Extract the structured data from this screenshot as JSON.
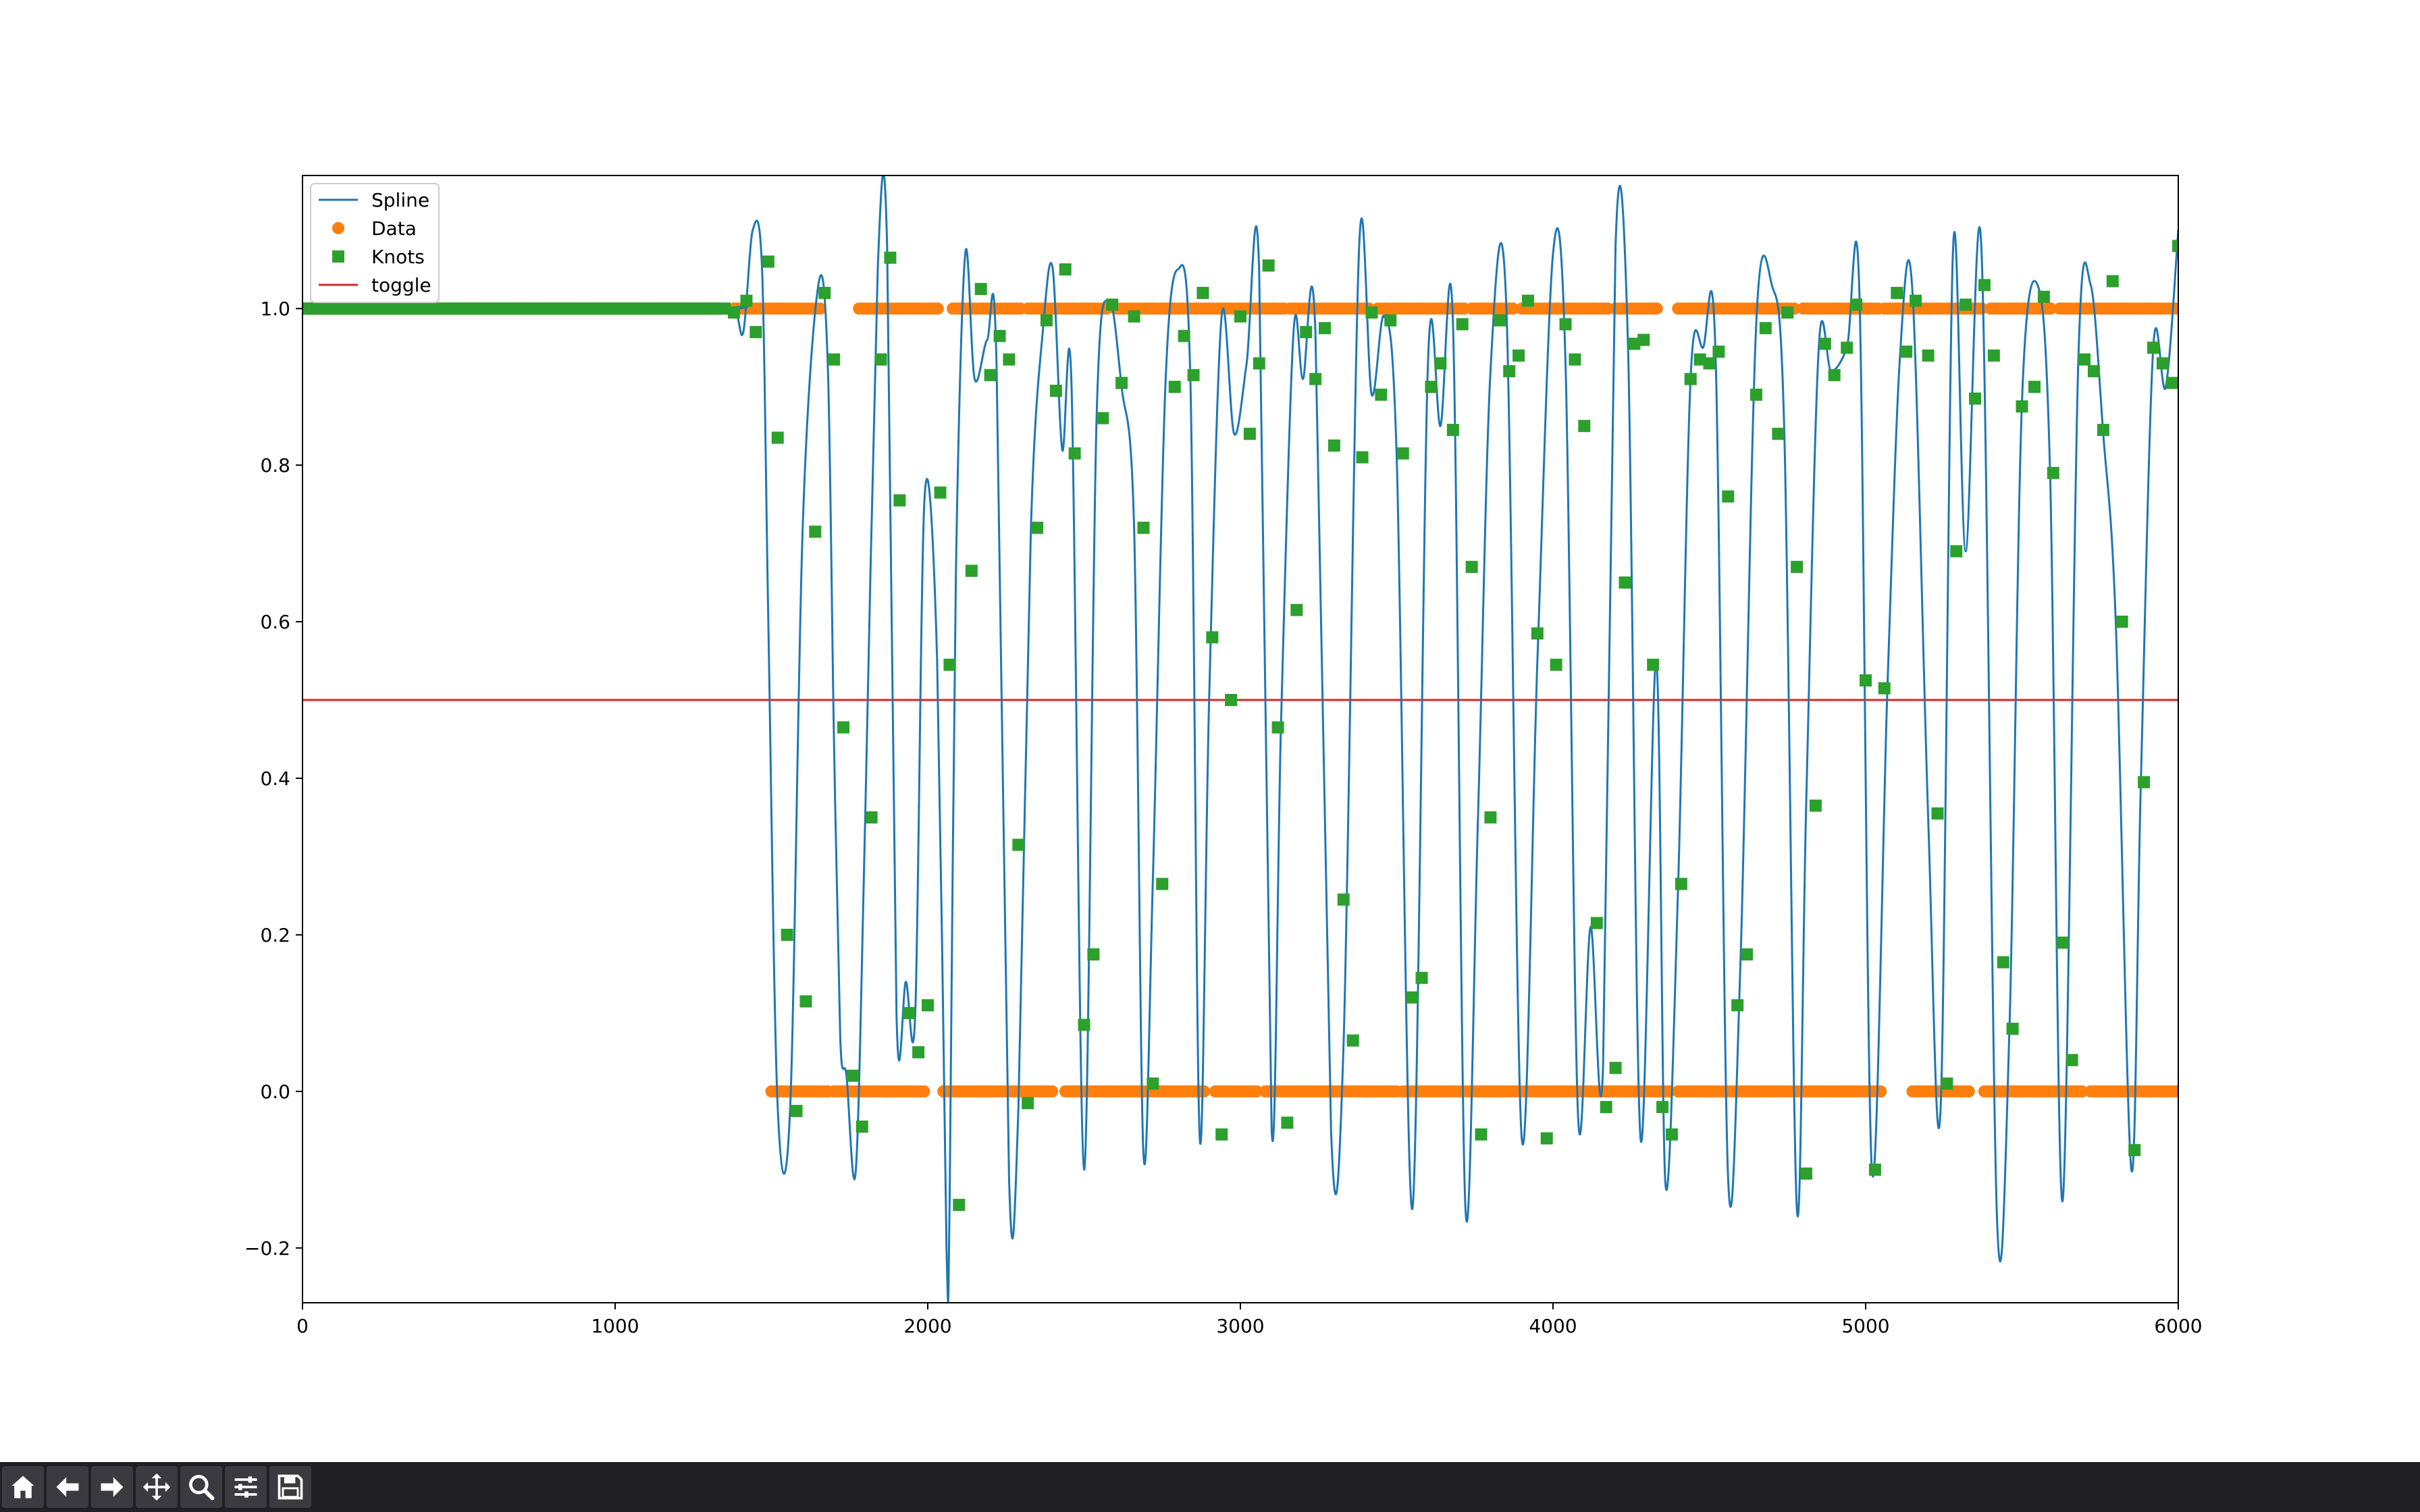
{
  "chart_data": {
    "type": "line",
    "title": "",
    "xlabel": "",
    "ylabel": "",
    "xlim": [
      0,
      6000
    ],
    "ylim": [
      -0.27,
      1.17
    ],
    "xticks": [
      0,
      1000,
      2000,
      3000,
      4000,
      5000,
      6000
    ],
    "xtick_labels": [
      "0",
      "1000",
      "2000",
      "3000",
      "4000",
      "5000",
      "6000"
    ],
    "yticks": [
      -0.2,
      0.0,
      0.2,
      0.4,
      0.6,
      0.8,
      1.0
    ],
    "ytick_labels": [
      "−0.2",
      "0.0",
      "0.2",
      "0.4",
      "0.6",
      "0.8",
      "1.0"
    ],
    "grid": false,
    "legend_position": "top-left",
    "colors": {
      "spline": "#1f77b4",
      "data": "#ff7f0e",
      "knots": "#2ca02c",
      "toggle": "#d62728"
    },
    "series": [
      {
        "name": "Spline",
        "style": "line",
        "x": [
          0,
          1300,
          1380,
          1410,
          1440,
          1470,
          1490,
          1520,
          1560,
          1600,
          1650,
          1680,
          1700,
          1720,
          1740,
          1770,
          1800,
          1840,
          1870,
          1900,
          1930,
          1960,
          1990,
          2030,
          2060,
          2070,
          2090,
          2120,
          2150,
          2190,
          2220,
          2260,
          2290,
          2330,
          2370,
          2400,
          2430,
          2460,
          2500,
          2540,
          2580,
          2620,
          2660,
          2690,
          2720,
          2760,
          2800,
          2840,
          2870,
          2900,
          2940,
          2980,
          3020,
          3060,
          3100,
          3130,
          3170,
          3200,
          3240,
          3290,
          3330,
          3380,
          3420,
          3460,
          3500,
          3550,
          3600,
          3640,
          3680,
          3720,
          3760,
          3800,
          3850,
          3900,
          3950,
          4000,
          4040,
          4080,
          4120,
          4160,
          4200,
          4240,
          4280,
          4330,
          4360,
          4400,
          4440,
          4480,
          4520,
          4560,
          4600,
          4650,
          4700,
          4740,
          4780,
          4810,
          4850,
          4890,
          4940,
          4980,
          5020,
          5070,
          5110,
          5150,
          5200,
          5240,
          5280,
          5320,
          5370,
          5420,
          5460,
          5500,
          5550,
          5590,
          5630,
          5680,
          5720,
          5760,
          5800,
          5850,
          5880,
          5920,
          5960,
          6000
        ],
        "y": [
          1.0,
          1.0,
          1.0,
          0.97,
          1.1,
          1.05,
          0.6,
          -0.02,
          -0.02,
          0.72,
          1.03,
          0.93,
          0.45,
          0.07,
          0.02,
          -0.1,
          0.35,
          1.05,
          1.08,
          0.1,
          0.14,
          0.1,
          0.76,
          0.55,
          -0.2,
          -0.14,
          0.66,
          1.07,
          0.91,
          0.96,
          0.93,
          -0.11,
          -0.02,
          0.72,
          0.98,
          1.05,
          0.82,
          0.9,
          -0.1,
          0.86,
          1.01,
          0.9,
          0.72,
          -0.08,
          0.27,
          0.9,
          1.05,
          0.91,
          -0.06,
          0.5,
          0.99,
          0.84,
          0.93,
          1.05,
          -0.05,
          0.47,
          0.97,
          0.91,
          0.97,
          -0.05,
          0.06,
          1.08,
          0.89,
          0.99,
          0.81,
          -0.15,
          0.93,
          0.85,
          0.98,
          -0.15,
          0.35,
          0.92,
          1.01,
          -0.06,
          0.55,
          1.07,
          0.93,
          -0.03,
          0.21,
          0.03,
          1.08,
          0.95,
          -0.06,
          0.55,
          -0.12,
          0.26,
          0.91,
          0.95,
          0.94,
          -0.11,
          0.17,
          0.98,
          1.03,
          0.84,
          -0.15,
          0.37,
          0.95,
          0.92,
          0.95,
          1.02,
          -0.1,
          0.52,
          0.94,
          1.02,
          0.35,
          -0.02,
          1.08,
          0.69,
          1.08,
          -0.16,
          0.08,
          0.88,
          1.03,
          0.79,
          -0.14,
          0.93,
          1.03,
          0.84,
          0.6,
          -0.1,
          0.39,
          0.95,
          0.9,
          1.1
        ]
      },
      {
        "name": "Data",
        "style": "markers",
        "marker": "circle",
        "x_low_ranges": [
          [
            1500,
            1680
          ],
          [
            1700,
            1990
          ],
          [
            2050,
            2400
          ],
          [
            2440,
            2890
          ],
          [
            2920,
            3060
          ],
          [
            3080,
            3500
          ],
          [
            3520,
            4380
          ],
          [
            4400,
            5050
          ],
          [
            5150,
            5340
          ],
          [
            5380,
            5700
          ],
          [
            5720,
            6000
          ]
        ],
        "x_high_ranges": [
          [
            1380,
            1660
          ],
          [
            1780,
            2040
          ],
          [
            2080,
            2300
          ],
          [
            2320,
            2580
          ],
          [
            2600,
            3140
          ],
          [
            3160,
            3420
          ],
          [
            3440,
            3720
          ],
          [
            3740,
            3880
          ],
          [
            3900,
            4180
          ],
          [
            4200,
            4340
          ],
          [
            4400,
            4780
          ],
          [
            4800,
            5040
          ],
          [
            5060,
            5380
          ],
          [
            5400,
            5600
          ],
          [
            5620,
            6000
          ]
        ],
        "low_value": 0.0,
        "high_value": 1.0
      },
      {
        "name": "Knots",
        "style": "markers",
        "marker": "square",
        "x": [
          1320,
          1350,
          1380,
          1420,
          1450,
          1490,
          1520,
          1550,
          1580,
          1610,
          1640,
          1670,
          1700,
          1730,
          1760,
          1790,
          1820,
          1850,
          1880,
          1910,
          1940,
          1970,
          2000,
          2040,
          2070,
          2100,
          2140,
          2170,
          2200,
          2230,
          2260,
          2290,
          2320,
          2350,
          2380,
          2410,
          2440,
          2470,
          2500,
          2530,
          2560,
          2590,
          2620,
          2660,
          2690,
          2720,
          2750,
          2790,
          2820,
          2850,
          2880,
          2910,
          2940,
          2970,
          3000,
          3030,
          3060,
          3090,
          3120,
          3150,
          3180,
          3210,
          3240,
          3270,
          3300,
          3330,
          3360,
          3390,
          3420,
          3450,
          3480,
          3520,
          3550,
          3580,
          3610,
          3640,
          3680,
          3710,
          3740,
          3770,
          3800,
          3830,
          3860,
          3890,
          3920,
          3950,
          3980,
          4010,
          4040,
          4070,
          4100,
          4140,
          4170,
          4200,
          4230,
          4260,
          4290,
          4320,
          4350,
          4380,
          4410,
          4440,
          4470,
          4500,
          4530,
          4560,
          4590,
          4620,
          4650,
          4680,
          4720,
          4750,
          4780,
          4810,
          4840,
          4870,
          4900,
          4940,
          4970,
          5000,
          5030,
          5060,
          5100,
          5130,
          5160,
          5200,
          5230,
          5260,
          5290,
          5320,
          5350,
          5380,
          5410,
          5440,
          5470,
          5500,
          5540,
          5570,
          5600,
          5630,
          5660,
          5700,
          5730,
          5760,
          5790,
          5820,
          5860,
          5890,
          5920,
          5950,
          5980,
          6000
        ],
        "y": [
          1.0,
          1.0,
          0.995,
          1.01,
          0.97,
          1.06,
          0.835,
          0.2,
          -0.025,
          0.115,
          0.715,
          1.02,
          0.935,
          0.465,
          0.02,
          -0.045,
          0.35,
          0.935,
          1.065,
          0.755,
          0.1,
          0.05,
          0.11,
          0.765,
          0.545,
          -0.145,
          0.665,
          1.025,
          0.915,
          0.965,
          0.935,
          0.315,
          -0.015,
          0.72,
          0.985,
          0.895,
          1.05,
          0.815,
          0.085,
          0.175,
          0.86,
          1.005,
          0.905,
          0.99,
          0.72,
          0.01,
          0.265,
          0.9,
          0.965,
          0.915,
          1.02,
          0.58,
          -0.055,
          0.5,
          0.99,
          0.84,
          0.93,
          1.055,
          0.465,
          -0.04,
          0.615,
          0.97,
          0.91,
          0.975,
          0.825,
          0.245,
          0.065,
          0.81,
          0.995,
          0.89,
          0.985,
          0.815,
          0.12,
          0.145,
          0.9,
          0.93,
          0.845,
          0.98,
          0.67,
          -0.055,
          0.35,
          0.985,
          0.92,
          0.94,
          1.01,
          0.585,
          -0.06,
          0.545,
          0.98,
          0.935,
          0.85,
          0.215,
          -0.02,
          0.03,
          0.65,
          0.955,
          0.96,
          0.545,
          -0.02,
          -0.055,
          0.265,
          0.91,
          0.935,
          0.93,
          0.945,
          0.76,
          0.11,
          0.175,
          0.89,
          0.975,
          0.84,
          0.995,
          0.67,
          -0.105,
          0.365,
          0.955,
          0.915,
          0.95,
          1.005,
          0.525,
          -0.1,
          0.515,
          1.02,
          0.945,
          1.01,
          0.94,
          0.355,
          0.01,
          0.69,
          1.005,
          0.885,
          1.03,
          0.94,
          0.165,
          0.08,
          0.875,
          0.9,
          1.015,
          0.79,
          0.19,
          0.04,
          0.935,
          0.92,
          0.845,
          1.035,
          0.6,
          -0.075,
          0.395,
          0.95,
          0.93,
          0.905,
          1.08
        ]
      },
      {
        "name": "toggle",
        "style": "line",
        "x": [
          0,
          6000
        ],
        "y": [
          0.5,
          0.5
        ]
      }
    ]
  },
  "toolbar": {
    "buttons": [
      {
        "name": "home-button",
        "icon": "home-icon"
      },
      {
        "name": "back-button",
        "icon": "arrow-left-icon"
      },
      {
        "name": "forward-button",
        "icon": "arrow-right-icon"
      },
      {
        "name": "pan-button",
        "icon": "move-icon"
      },
      {
        "name": "zoom-button",
        "icon": "magnifier-icon"
      },
      {
        "name": "configure-button",
        "icon": "sliders-icon"
      },
      {
        "name": "save-button",
        "icon": "floppy-icon"
      }
    ]
  }
}
